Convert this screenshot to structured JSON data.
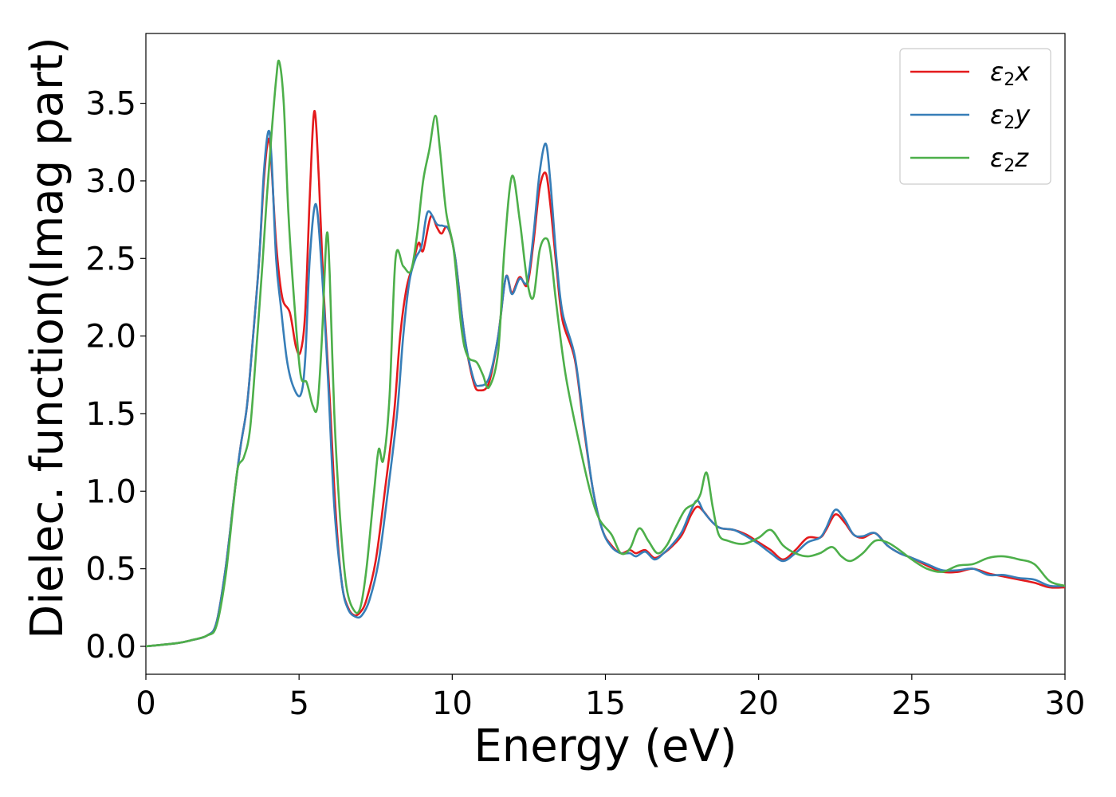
{
  "chart_data": {
    "type": "line",
    "title": "",
    "xlabel": "Energy (eV)",
    "ylabel": "Dielec. function(Imag part)",
    "xlim": [
      0,
      30
    ],
    "ylim": [
      -0.18,
      3.95
    ],
    "xticks": [
      0,
      5,
      10,
      15,
      20,
      25,
      30
    ],
    "xtick_labels": [
      "0",
      "5",
      "10",
      "15",
      "20",
      "25",
      "30"
    ],
    "yticks": [
      0.0,
      0.5,
      1.0,
      1.5,
      2.0,
      2.5,
      3.0,
      3.5
    ],
    "ytick_labels": [
      "0.0",
      "0.5",
      "1.0",
      "1.5",
      "2.0",
      "2.5",
      "3.0",
      "3.5"
    ],
    "grid": false,
    "legend_position": "top-right",
    "series": [
      {
        "name": "ε2x",
        "color": "#e41a1c",
        "points": [
          [
            0,
            0
          ],
          [
            1,
            0.02
          ],
          [
            1.5,
            0.04
          ],
          [
            2,
            0.07
          ],
          [
            2.3,
            0.15
          ],
          [
            2.6,
            0.5
          ],
          [
            2.9,
            1.0
          ],
          [
            3.1,
            1.3
          ],
          [
            3.3,
            1.55
          ],
          [
            3.5,
            2.0
          ],
          [
            3.7,
            2.5
          ],
          [
            3.85,
            3.0
          ],
          [
            4.0,
            3.27
          ],
          [
            4.1,
            3.1
          ],
          [
            4.25,
            2.6
          ],
          [
            4.45,
            2.25
          ],
          [
            4.7,
            2.15
          ],
          [
            4.9,
            1.93
          ],
          [
            5.05,
            1.9
          ],
          [
            5.2,
            2.15
          ],
          [
            5.35,
            2.9
          ],
          [
            5.5,
            3.45
          ],
          [
            5.65,
            3.0
          ],
          [
            5.8,
            2.3
          ],
          [
            6.0,
            1.6
          ],
          [
            6.2,
            0.85
          ],
          [
            6.4,
            0.4
          ],
          [
            6.6,
            0.25
          ],
          [
            6.8,
            0.2
          ],
          [
            7.0,
            0.22
          ],
          [
            7.2,
            0.3
          ],
          [
            7.5,
            0.55
          ],
          [
            7.8,
            1.0
          ],
          [
            8.1,
            1.5
          ],
          [
            8.3,
            2.0
          ],
          [
            8.5,
            2.3
          ],
          [
            8.7,
            2.45
          ],
          [
            8.9,
            2.6
          ],
          [
            9.05,
            2.55
          ],
          [
            9.3,
            2.77
          ],
          [
            9.5,
            2.7
          ],
          [
            9.65,
            2.66
          ],
          [
            9.85,
            2.7
          ],
          [
            10.1,
            2.5
          ],
          [
            10.4,
            2.0
          ],
          [
            10.7,
            1.7
          ],
          [
            10.9,
            1.65
          ],
          [
            11.2,
            1.7
          ],
          [
            11.5,
            2.0
          ],
          [
            11.75,
            2.38
          ],
          [
            11.95,
            2.28
          ],
          [
            12.2,
            2.38
          ],
          [
            12.45,
            2.33
          ],
          [
            12.65,
            2.6
          ],
          [
            12.85,
            2.95
          ],
          [
            13.05,
            3.05
          ],
          [
            13.2,
            2.85
          ],
          [
            13.4,
            2.45
          ],
          [
            13.6,
            2.1
          ],
          [
            14.0,
            1.85
          ],
          [
            14.3,
            1.4
          ],
          [
            14.6,
            1.0
          ],
          [
            14.9,
            0.75
          ],
          [
            15.2,
            0.65
          ],
          [
            15.5,
            0.6
          ],
          [
            15.8,
            0.62
          ],
          [
            16.0,
            0.6
          ],
          [
            16.3,
            0.62
          ],
          [
            16.6,
            0.57
          ],
          [
            16.9,
            0.6
          ],
          [
            17.2,
            0.65
          ],
          [
            17.5,
            0.72
          ],
          [
            17.8,
            0.85
          ],
          [
            18.0,
            0.9
          ],
          [
            18.2,
            0.87
          ],
          [
            18.4,
            0.82
          ],
          [
            18.6,
            0.78
          ],
          [
            18.8,
            0.76
          ],
          [
            19.2,
            0.75
          ],
          [
            19.6,
            0.72
          ],
          [
            20.0,
            0.67
          ],
          [
            20.4,
            0.62
          ],
          [
            20.8,
            0.56
          ],
          [
            21.2,
            0.62
          ],
          [
            21.6,
            0.7
          ],
          [
            22.0,
            0.7
          ],
          [
            22.2,
            0.75
          ],
          [
            22.5,
            0.85
          ],
          [
            22.8,
            0.8
          ],
          [
            23.1,
            0.72
          ],
          [
            23.4,
            0.7
          ],
          [
            23.8,
            0.73
          ],
          [
            24.2,
            0.65
          ],
          [
            24.6,
            0.6
          ],
          [
            25.0,
            0.57
          ],
          [
            25.5,
            0.52
          ],
          [
            26.0,
            0.48
          ],
          [
            26.5,
            0.48
          ],
          [
            27.0,
            0.5
          ],
          [
            27.5,
            0.47
          ],
          [
            28.0,
            0.45
          ],
          [
            28.5,
            0.43
          ],
          [
            29.0,
            0.41
          ],
          [
            29.5,
            0.38
          ],
          [
            30.0,
            0.38
          ]
        ]
      },
      {
        "name": "ε2y",
        "color": "#377eb8",
        "points": [
          [
            0,
            0
          ],
          [
            1,
            0.02
          ],
          [
            1.5,
            0.04
          ],
          [
            2,
            0.07
          ],
          [
            2.3,
            0.15
          ],
          [
            2.6,
            0.5
          ],
          [
            2.9,
            1.0
          ],
          [
            3.1,
            1.3
          ],
          [
            3.3,
            1.55
          ],
          [
            3.5,
            2.0
          ],
          [
            3.7,
            2.5
          ],
          [
            3.85,
            3.05
          ],
          [
            4.0,
            3.32
          ],
          [
            4.1,
            3.15
          ],
          [
            4.25,
            2.5
          ],
          [
            4.4,
            2.2
          ],
          [
            4.6,
            1.85
          ],
          [
            4.8,
            1.68
          ],
          [
            5.05,
            1.62
          ],
          [
            5.2,
            1.85
          ],
          [
            5.35,
            2.5
          ],
          [
            5.55,
            2.85
          ],
          [
            5.75,
            2.4
          ],
          [
            5.95,
            1.7
          ],
          [
            6.15,
            0.9
          ],
          [
            6.4,
            0.4
          ],
          [
            6.6,
            0.24
          ],
          [
            6.85,
            0.19
          ],
          [
            7.05,
            0.2
          ],
          [
            7.3,
            0.3
          ],
          [
            7.6,
            0.55
          ],
          [
            7.9,
            1.0
          ],
          [
            8.2,
            1.5
          ],
          [
            8.4,
            2.0
          ],
          [
            8.6,
            2.35
          ],
          [
            8.8,
            2.5
          ],
          [
            9.0,
            2.58
          ],
          [
            9.2,
            2.8
          ],
          [
            9.5,
            2.72
          ],
          [
            9.7,
            2.71
          ],
          [
            9.9,
            2.68
          ],
          [
            10.1,
            2.5
          ],
          [
            10.4,
            2.0
          ],
          [
            10.7,
            1.72
          ],
          [
            10.9,
            1.68
          ],
          [
            11.2,
            1.73
          ],
          [
            11.5,
            2.0
          ],
          [
            11.75,
            2.38
          ],
          [
            11.95,
            2.27
          ],
          [
            12.2,
            2.37
          ],
          [
            12.45,
            2.35
          ],
          [
            12.65,
            2.65
          ],
          [
            12.85,
            3.05
          ],
          [
            13.05,
            3.24
          ],
          [
            13.2,
            3.0
          ],
          [
            13.4,
            2.5
          ],
          [
            13.6,
            2.15
          ],
          [
            14.0,
            1.87
          ],
          [
            14.3,
            1.42
          ],
          [
            14.6,
            1.0
          ],
          [
            14.9,
            0.75
          ],
          [
            15.2,
            0.64
          ],
          [
            15.5,
            0.6
          ],
          [
            15.8,
            0.6
          ],
          [
            16.0,
            0.58
          ],
          [
            16.3,
            0.61
          ],
          [
            16.6,
            0.56
          ],
          [
            16.9,
            0.6
          ],
          [
            17.2,
            0.66
          ],
          [
            17.5,
            0.74
          ],
          [
            17.8,
            0.88
          ],
          [
            18.0,
            0.94
          ],
          [
            18.2,
            0.87
          ],
          [
            18.4,
            0.82
          ],
          [
            18.6,
            0.78
          ],
          [
            18.8,
            0.76
          ],
          [
            19.2,
            0.75
          ],
          [
            19.6,
            0.71
          ],
          [
            20.0,
            0.66
          ],
          [
            20.4,
            0.6
          ],
          [
            20.8,
            0.55
          ],
          [
            21.2,
            0.6
          ],
          [
            21.6,
            0.67
          ],
          [
            22.0,
            0.7
          ],
          [
            22.2,
            0.76
          ],
          [
            22.5,
            0.88
          ],
          [
            22.8,
            0.82
          ],
          [
            23.1,
            0.72
          ],
          [
            23.4,
            0.71
          ],
          [
            23.8,
            0.73
          ],
          [
            24.2,
            0.65
          ],
          [
            24.6,
            0.6
          ],
          [
            25.0,
            0.57
          ],
          [
            25.5,
            0.53
          ],
          [
            26.0,
            0.49
          ],
          [
            26.5,
            0.49
          ],
          [
            27.0,
            0.5
          ],
          [
            27.5,
            0.46
          ],
          [
            28.0,
            0.46
          ],
          [
            28.5,
            0.44
          ],
          [
            29.0,
            0.43
          ],
          [
            29.5,
            0.39
          ],
          [
            30.0,
            0.39
          ]
        ]
      },
      {
        "name": "ε2z",
        "color": "#4daf4a",
        "points": [
          [
            0,
            0
          ],
          [
            1,
            0.02
          ],
          [
            1.5,
            0.04
          ],
          [
            2,
            0.07
          ],
          [
            2.3,
            0.13
          ],
          [
            2.6,
            0.45
          ],
          [
            2.85,
            0.9
          ],
          [
            3.0,
            1.15
          ],
          [
            3.2,
            1.22
          ],
          [
            3.4,
            1.4
          ],
          [
            3.6,
            1.9
          ],
          [
            3.8,
            2.45
          ],
          [
            3.95,
            2.9
          ],
          [
            4.1,
            3.3
          ],
          [
            4.25,
            3.65
          ],
          [
            4.35,
            3.77
          ],
          [
            4.5,
            3.5
          ],
          [
            4.65,
            2.8
          ],
          [
            4.85,
            2.2
          ],
          [
            5.05,
            1.75
          ],
          [
            5.25,
            1.7
          ],
          [
            5.45,
            1.55
          ],
          [
            5.6,
            1.55
          ],
          [
            5.75,
            2.0
          ],
          [
            5.9,
            2.65
          ],
          [
            6.0,
            2.4
          ],
          [
            6.15,
            1.5
          ],
          [
            6.35,
            0.8
          ],
          [
            6.55,
            0.38
          ],
          [
            6.8,
            0.23
          ],
          [
            7.0,
            0.25
          ],
          [
            7.2,
            0.5
          ],
          [
            7.45,
            1.0
          ],
          [
            7.6,
            1.27
          ],
          [
            7.75,
            1.2
          ],
          [
            7.95,
            1.6
          ],
          [
            8.15,
            2.5
          ],
          [
            8.4,
            2.45
          ],
          [
            8.65,
            2.42
          ],
          [
            8.85,
            2.65
          ],
          [
            9.05,
            3.0
          ],
          [
            9.25,
            3.2
          ],
          [
            9.45,
            3.42
          ],
          [
            9.6,
            3.2
          ],
          [
            9.8,
            2.8
          ],
          [
            10.05,
            2.55
          ],
          [
            10.3,
            2.05
          ],
          [
            10.5,
            1.87
          ],
          [
            10.8,
            1.83
          ],
          [
            11.0,
            1.75
          ],
          [
            11.2,
            1.67
          ],
          [
            11.5,
            1.9
          ],
          [
            11.7,
            2.55
          ],
          [
            11.95,
            3.03
          ],
          [
            12.2,
            2.75
          ],
          [
            12.45,
            2.35
          ],
          [
            12.65,
            2.25
          ],
          [
            12.85,
            2.55
          ],
          [
            13.05,
            2.63
          ],
          [
            13.2,
            2.55
          ],
          [
            13.4,
            2.2
          ],
          [
            13.7,
            1.75
          ],
          [
            14.1,
            1.35
          ],
          [
            14.5,
            1.0
          ],
          [
            14.8,
            0.82
          ],
          [
            15.2,
            0.72
          ],
          [
            15.5,
            0.6
          ],
          [
            15.8,
            0.63
          ],
          [
            16.1,
            0.76
          ],
          [
            16.4,
            0.68
          ],
          [
            16.7,
            0.6
          ],
          [
            17.0,
            0.65
          ],
          [
            17.3,
            0.77
          ],
          [
            17.6,
            0.88
          ],
          [
            17.9,
            0.92
          ],
          [
            18.1,
            0.98
          ],
          [
            18.3,
            1.12
          ],
          [
            18.5,
            0.9
          ],
          [
            18.7,
            0.72
          ],
          [
            19.0,
            0.68
          ],
          [
            19.5,
            0.66
          ],
          [
            20.0,
            0.7
          ],
          [
            20.4,
            0.75
          ],
          [
            20.8,
            0.65
          ],
          [
            21.2,
            0.6
          ],
          [
            21.6,
            0.58
          ],
          [
            22.0,
            0.6
          ],
          [
            22.4,
            0.64
          ],
          [
            22.7,
            0.58
          ],
          [
            23.0,
            0.55
          ],
          [
            23.4,
            0.6
          ],
          [
            23.8,
            0.68
          ],
          [
            24.2,
            0.67
          ],
          [
            24.6,
            0.62
          ],
          [
            25.0,
            0.56
          ],
          [
            25.5,
            0.5
          ],
          [
            26.0,
            0.48
          ],
          [
            26.5,
            0.52
          ],
          [
            27.0,
            0.53
          ],
          [
            27.5,
            0.57
          ],
          [
            28.0,
            0.58
          ],
          [
            28.5,
            0.56
          ],
          [
            29.0,
            0.53
          ],
          [
            29.5,
            0.42
          ],
          [
            30.0,
            0.39
          ]
        ]
      }
    ]
  },
  "legend": {
    "entries": [
      {
        "base": "ε",
        "sub": "2",
        "var": "x"
      },
      {
        "base": "ε",
        "sub": "2",
        "var": "y"
      },
      {
        "base": "ε",
        "sub": "2",
        "var": "z"
      }
    ]
  }
}
